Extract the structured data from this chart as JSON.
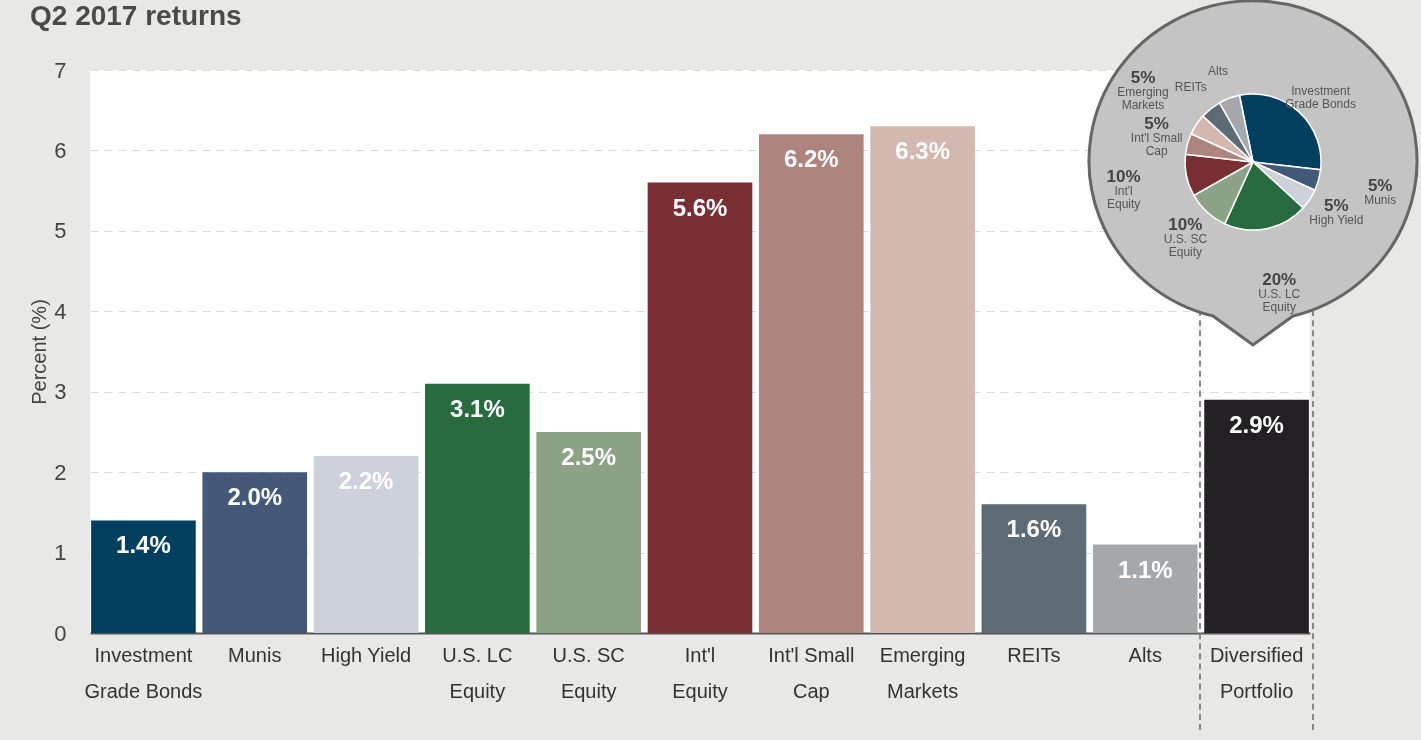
{
  "chart_data": [
    {
      "type": "bar",
      "title": "Q2 2017 returns",
      "ylabel": "Percent (%)",
      "categories": [
        "Investment Grade Bonds",
        "Munis",
        "High Yield",
        "U.S. LC Equity",
        "U.S. SC Equity",
        "Int'l Equity",
        "Int'l Small Cap",
        "Emerging Markets",
        "REITs",
        "Alts",
        "Diversified Portfolio"
      ],
      "values": [
        1.4,
        2.0,
        2.2,
        3.1,
        2.5,
        5.6,
        6.2,
        6.3,
        1.6,
        1.1,
        2.9
      ],
      "value_labels": [
        "1.4%",
        "2.0%",
        "2.2%",
        "3.1%",
        "2.5%",
        "5.6%",
        "6.2%",
        "6.3%",
        "1.6%",
        "1.1%",
        "2.9%"
      ],
      "colors": [
        "#023e5e",
        "#44597a",
        "#cdd1da",
        "#276b3e",
        "#8da286",
        "#782e33",
        "#ae847e",
        "#d3b8b1",
        "#5f6b74",
        "#a4a8ab",
        "#222022"
      ],
      "ylim": [
        0,
        7
      ],
      "yticks": [
        0,
        1,
        2,
        3,
        4,
        5,
        6,
        7
      ],
      "grid": "y"
    },
    {
      "type": "pie",
      "categories": [
        "Investment Grade Bonds",
        "Munis",
        "High Yield",
        "U.S. LC Equity",
        "U.S. SC Equity",
        "Int'l Equity",
        "Int'l Small Cap",
        "Emerging Markets",
        "REITs",
        "Alts"
      ],
      "values": [
        30,
        5,
        5,
        20,
        10,
        10,
        5,
        5,
        5,
        5
      ],
      "value_labels": [
        null,
        "5%",
        "5%",
        "20%",
        "10%",
        "10%",
        "5%",
        "5%",
        null,
        null
      ],
      "colors": [
        "#023e5e",
        "#44597a",
        "#cdd1da",
        "#276b3e",
        "#8da286",
        "#782e33",
        "#ae847e",
        "#d3b8b1",
        "#5f6b74",
        "#a4a8ab"
      ]
    }
  ]
}
